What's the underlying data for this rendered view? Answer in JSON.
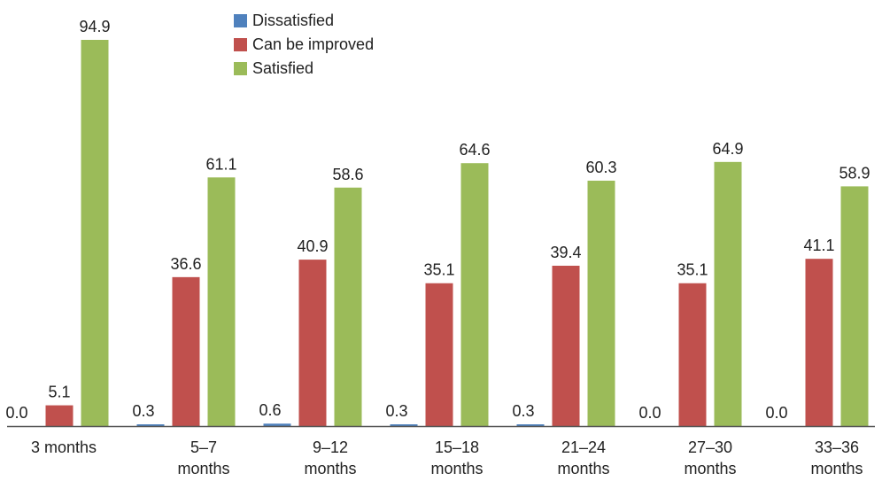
{
  "chart_data": {
    "type": "bar",
    "categories": [
      [
        "3 months"
      ],
      [
        "5–7",
        "months"
      ],
      [
        "9–12",
        "months"
      ],
      [
        "15–18",
        "months"
      ],
      [
        "21–24",
        "months"
      ],
      [
        "27–30",
        "months"
      ],
      [
        "33–36",
        "months"
      ]
    ],
    "series": [
      {
        "name": "Dissatisfied",
        "color": "#4f81bd",
        "values": [
          0.0,
          0.3,
          0.6,
          0.3,
          0.3,
          0.0,
          0.0
        ]
      },
      {
        "name": "Can be improved",
        "color": "#c0504d",
        "values": [
          5.1,
          36.6,
          40.9,
          35.1,
          39.4,
          35.1,
          41.1
        ]
      },
      {
        "name": "Satisfied",
        "color": "#9bbb59",
        "values": [
          94.9,
          61.1,
          58.6,
          64.6,
          60.3,
          64.9,
          58.9
        ]
      }
    ],
    "title": "",
    "xlabel": "",
    "ylabel": "",
    "ylim": [
      0,
      100
    ],
    "grid": false,
    "legend": "top-left"
  }
}
